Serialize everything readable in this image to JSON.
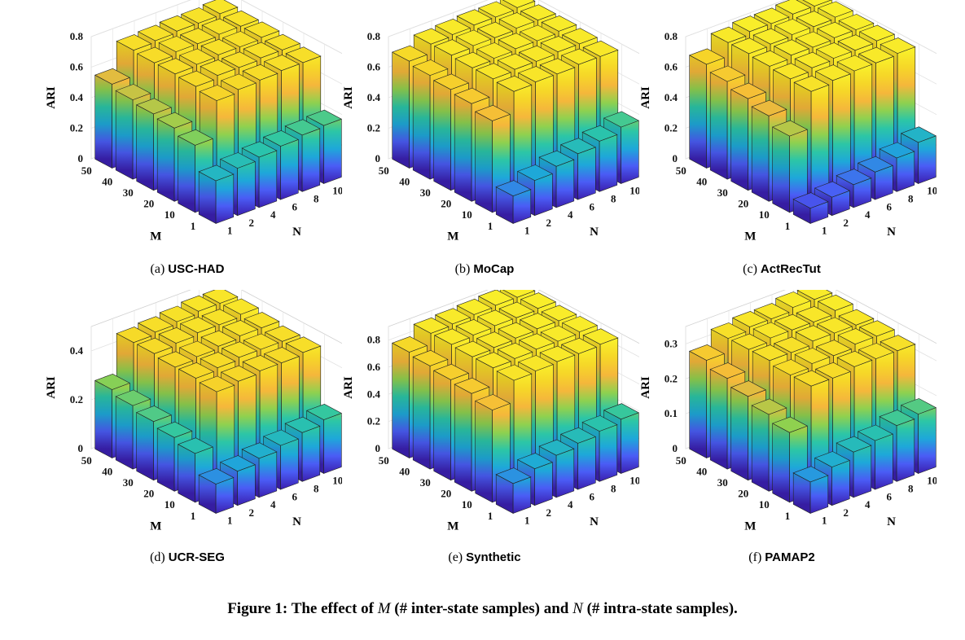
{
  "figure_caption": {
    "label": "Figure 1:",
    "part1": "The effect of",
    "sym_m": "M",
    "part2": "(# inter-state samples) and",
    "sym_n": "N",
    "part3": "(# intra-state samples)."
  },
  "colors": {
    "gradient_stops": [
      "#3b1fb0",
      "#4a5cf5",
      "#1ea8d9",
      "#2cc6a6",
      "#8fd14f",
      "#f5b73b",
      "#f6d628",
      "#f9f02a"
    ]
  },
  "chart_data": [
    {
      "type": "bar3d",
      "panel_label": "(a)",
      "title": "USC-HAD",
      "zlabel": "ARI",
      "xlabel": "M",
      "ylabel": "N",
      "zlim": [
        0,
        0.8
      ],
      "z_ticks": [
        "0",
        "0.2",
        "0.4",
        "0.6",
        "0.8"
      ],
      "m_ticks": [
        "1",
        "10",
        "20",
        "30",
        "40",
        "50"
      ],
      "n_ticks": [
        "1",
        "2",
        "4",
        "6",
        "8",
        "10"
      ],
      "m_values": [
        1,
        10,
        20,
        30,
        40,
        50
      ],
      "n_values": [
        1,
        2,
        4,
        6,
        8,
        10
      ],
      "ari": [
        [
          0.28,
          0.31,
          0.33,
          0.35,
          0.37,
          0.38
        ],
        [
          0.44,
          0.68,
          0.7,
          0.71,
          0.72,
          0.72
        ],
        [
          0.48,
          0.7,
          0.72,
          0.72,
          0.73,
          0.73
        ],
        [
          0.5,
          0.71,
          0.72,
          0.73,
          0.73,
          0.74
        ],
        [
          0.52,
          0.71,
          0.73,
          0.73,
          0.74,
          0.74
        ],
        [
          0.55,
          0.72,
          0.73,
          0.74,
          0.74,
          0.75
        ]
      ]
    },
    {
      "type": "bar3d",
      "panel_label": "(b)",
      "title": "MoCap",
      "zlabel": "ARI",
      "xlabel": "M",
      "ylabel": "N",
      "zlim": [
        0,
        0.8
      ],
      "z_ticks": [
        "0",
        "0.2",
        "0.4",
        "0.6",
        "0.8"
      ],
      "m_ticks": [
        "1",
        "10",
        "20",
        "30",
        "40",
        "50"
      ],
      "n_ticks": [
        "1",
        "2",
        "4",
        "6",
        "8",
        "10"
      ],
      "m_values": [
        1,
        10,
        20,
        30,
        40,
        50
      ],
      "n_values": [
        1,
        2,
        4,
        6,
        8,
        10
      ],
      "ari": [
        [
          0.18,
          0.23,
          0.27,
          0.3,
          0.33,
          0.37
        ],
        [
          0.6,
          0.74,
          0.75,
          0.75,
          0.76,
          0.76
        ],
        [
          0.64,
          0.75,
          0.76,
          0.76,
          0.77,
          0.77
        ],
        [
          0.66,
          0.75,
          0.76,
          0.77,
          0.77,
          0.78
        ],
        [
          0.68,
          0.76,
          0.77,
          0.77,
          0.78,
          0.78
        ],
        [
          0.7,
          0.76,
          0.77,
          0.78,
          0.78,
          0.79
        ]
      ]
    },
    {
      "type": "bar3d",
      "panel_label": "(c)",
      "title": "ActRecTut",
      "zlabel": "ARI",
      "xlabel": "M",
      "ylabel": "N",
      "zlim": [
        0,
        0.8
      ],
      "z_ticks": [
        "0",
        "0.2",
        "0.4",
        "0.6",
        "0.8"
      ],
      "m_ticks": [
        "1",
        "10",
        "20",
        "30",
        "40",
        "50"
      ],
      "n_ticks": [
        "1",
        "2",
        "4",
        "6",
        "8",
        "10"
      ],
      "m_values": [
        1,
        10,
        20,
        30,
        40,
        50
      ],
      "n_values": [
        1,
        2,
        4,
        6,
        8,
        10
      ],
      "ari": [
        [
          0.1,
          0.12,
          0.15,
          0.18,
          0.22,
          0.27
        ],
        [
          0.5,
          0.74,
          0.76,
          0.77,
          0.77,
          0.78
        ],
        [
          0.56,
          0.75,
          0.77,
          0.78,
          0.78,
          0.79
        ],
        [
          0.6,
          0.76,
          0.78,
          0.78,
          0.79,
          0.79
        ],
        [
          0.64,
          0.77,
          0.78,
          0.79,
          0.79,
          0.8
        ],
        [
          0.68,
          0.77,
          0.79,
          0.79,
          0.8,
          0.8
        ]
      ]
    },
    {
      "type": "bar3d",
      "panel_label": "(d)",
      "title": "UCR-SEG",
      "zlabel": "ARI",
      "xlabel": "M",
      "ylabel": "N",
      "zlim": [
        0,
        0.5
      ],
      "z_ticks": [
        "0",
        "0.2",
        "0.4"
      ],
      "z_tick_values": [
        0,
        0.2,
        0.4
      ],
      "m_ticks": [
        "1",
        "10",
        "20",
        "30",
        "40",
        "50"
      ],
      "n_ticks": [
        "1",
        "2",
        "4",
        "6",
        "8",
        "10"
      ],
      "m_values": [
        1,
        10,
        20,
        30,
        40,
        50
      ],
      "n_values": [
        1,
        2,
        4,
        6,
        8,
        10
      ],
      "ari": [
        [
          0.12,
          0.14,
          0.16,
          0.18,
          0.2,
          0.22
        ],
        [
          0.2,
          0.42,
          0.43,
          0.44,
          0.44,
          0.45
        ],
        [
          0.22,
          0.43,
          0.44,
          0.45,
          0.45,
          0.45
        ],
        [
          0.24,
          0.43,
          0.44,
          0.45,
          0.46,
          0.46
        ],
        [
          0.26,
          0.44,
          0.45,
          0.46,
          0.46,
          0.47
        ],
        [
          0.28,
          0.44,
          0.45,
          0.46,
          0.47,
          0.47
        ]
      ]
    },
    {
      "type": "bar3d",
      "panel_label": "(e)",
      "title": "Synthetic",
      "zlabel": "ARI",
      "xlabel": "M",
      "ylabel": "N",
      "zlim": [
        0,
        0.9
      ],
      "z_ticks": [
        "0",
        "0.2",
        "0.4",
        "0.6",
        "0.8"
      ],
      "z_tick_values": [
        0,
        0.2,
        0.4,
        0.6,
        0.8
      ],
      "m_ticks": [
        "1",
        "10",
        "20",
        "30",
        "40",
        "50"
      ],
      "n_ticks": [
        "1",
        "2",
        "4",
        "6",
        "8",
        "10"
      ],
      "m_values": [
        1,
        10,
        20,
        30,
        40,
        50
      ],
      "n_values": [
        1,
        2,
        4,
        6,
        8,
        10
      ],
      "ari": [
        [
          0.22,
          0.27,
          0.31,
          0.34,
          0.37,
          0.4
        ],
        [
          0.68,
          0.84,
          0.85,
          0.86,
          0.86,
          0.87
        ],
        [
          0.72,
          0.85,
          0.86,
          0.87,
          0.87,
          0.88
        ],
        [
          0.74,
          0.85,
          0.86,
          0.87,
          0.88,
          0.88
        ],
        [
          0.76,
          0.86,
          0.87,
          0.88,
          0.88,
          0.89
        ],
        [
          0.78,
          0.86,
          0.87,
          0.88,
          0.89,
          0.89
        ]
      ]
    },
    {
      "type": "bar3d",
      "panel_label": "(f)",
      "title": "PAMAP2",
      "zlabel": "ARI",
      "xlabel": "M",
      "ylabel": "N",
      "zlim": [
        0,
        0.35
      ],
      "z_ticks": [
        "0",
        "0.1",
        "0.2",
        "0.3"
      ],
      "z_tick_values": [
        0,
        0.1,
        0.2,
        0.3
      ],
      "m_ticks": [
        "1",
        "10",
        "20",
        "30",
        "40",
        "50"
      ],
      "n_ticks": [
        "1",
        "2",
        "4",
        "6",
        "8",
        "10"
      ],
      "m_values": [
        1,
        10,
        20,
        30,
        40,
        50
      ],
      "n_values": [
        1,
        2,
        4,
        6,
        8,
        10
      ],
      "ari": [
        [
          0.09,
          0.11,
          0.13,
          0.14,
          0.16,
          0.17
        ],
        [
          0.2,
          0.31,
          0.31,
          0.32,
          0.32,
          0.32
        ],
        [
          0.22,
          0.31,
          0.32,
          0.32,
          0.33,
          0.33
        ],
        [
          0.24,
          0.32,
          0.32,
          0.33,
          0.33,
          0.33
        ],
        [
          0.26,
          0.32,
          0.33,
          0.33,
          0.33,
          0.34
        ],
        [
          0.28,
          0.32,
          0.33,
          0.33,
          0.34,
          0.34
        ]
      ]
    }
  ]
}
